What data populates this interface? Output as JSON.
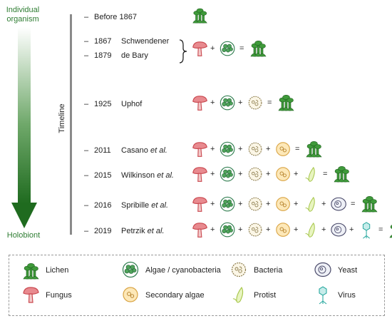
{
  "axis": {
    "top_label": "Individual organism",
    "bottom_label": "Holobiont",
    "timeline_label": "Timeline"
  },
  "entries": [
    {
      "year": "Before 1867",
      "author": "",
      "etal": "",
      "components": [],
      "result": "lichen"
    },
    {
      "year": "1867",
      "author": "Schwendener",
      "etal": "",
      "components": [
        "fungus",
        "algae"
      ],
      "result": "lichen"
    },
    {
      "year": "1879",
      "author": "de Bary",
      "etal": "",
      "components": [],
      "result": ""
    },
    {
      "year": "1925",
      "author": "Uphof",
      "etal": "",
      "components": [
        "fungus",
        "algae",
        "bacteria"
      ],
      "result": "lichen"
    },
    {
      "year": "2011",
      "author": "Casano",
      "etal": "et al.",
      "components": [
        "fungus",
        "algae",
        "bacteria",
        "secondary-algae"
      ],
      "result": "lichen"
    },
    {
      "year": "2015",
      "author": "Wilkinson",
      "etal": "et al.",
      "components": [
        "fungus",
        "algae",
        "bacteria",
        "secondary-algae",
        "protist"
      ],
      "result": "lichen"
    },
    {
      "year": "2016",
      "author": "Spribille",
      "etal": "et al.",
      "components": [
        "fungus",
        "algae",
        "bacteria",
        "secondary-algae",
        "protist",
        "yeast"
      ],
      "result": "lichen"
    },
    {
      "year": "2019",
      "author": "Petrzik",
      "etal": "et al.",
      "components": [
        "fungus",
        "algae",
        "bacteria",
        "secondary-algae",
        "protist",
        "yeast",
        "virus"
      ],
      "result": "lichen"
    }
  ],
  "symbols": {
    "plus": "+",
    "equals": "="
  },
  "legend": [
    {
      "icon": "lichen",
      "label": "Lichen"
    },
    {
      "icon": "algae",
      "label": "Algae / cyanobacteria"
    },
    {
      "icon": "bacteria",
      "label": "Bacteria"
    },
    {
      "icon": "yeast",
      "label": "Yeast"
    },
    {
      "icon": "fungus",
      "label": "Fungus"
    },
    {
      "icon": "secondary-algae",
      "label": "Secondary algae"
    },
    {
      "icon": "protist",
      "label": "Protist"
    },
    {
      "icon": "virus",
      "label": "Virus"
    }
  ],
  "colors": {
    "lichen": "#3f9a3a",
    "fungus": "#c9484f",
    "algae": "#2f7d4f",
    "bacteria": "#8a7a4a",
    "secondary_algae": "#d9a444",
    "protist": "#a6c64a",
    "yeast": "#4a4a6a",
    "virus": "#2aa9a0",
    "arrow": "#2e7d32"
  }
}
